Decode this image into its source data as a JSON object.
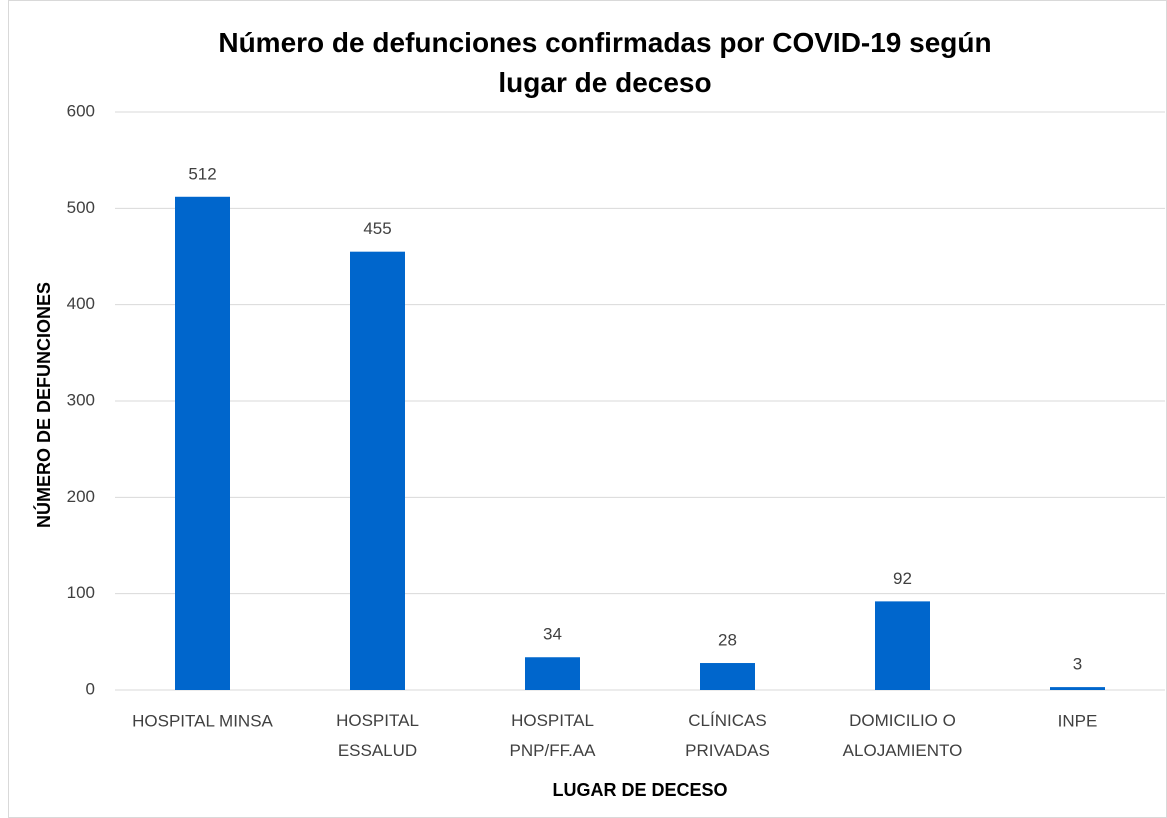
{
  "chart_data": {
    "type": "bar",
    "title": "Número de defunciones confirmadas por COVID-19 según\nlugar de deceso",
    "x_label": "LUGAR DE DECESO",
    "y_label": "NÚMERO DE DEFUNCIONES",
    "categories": [
      "HOSPITAL MINSA",
      "HOSPITAL\nESSALUD",
      "HOSPITAL\nPNP/FF.AA",
      "CLÍNICAS\nPRIVADAS",
      "DOMICILIO O\nALOJAMIENTO",
      "INPE"
    ],
    "values": [
      512,
      455,
      34,
      28,
      92,
      3
    ],
    "color": "#0066cc",
    "ylim": [
      0,
      600
    ],
    "yticks": [
      0,
      100,
      200,
      300,
      400,
      500,
      600
    ],
    "grid": true
  }
}
